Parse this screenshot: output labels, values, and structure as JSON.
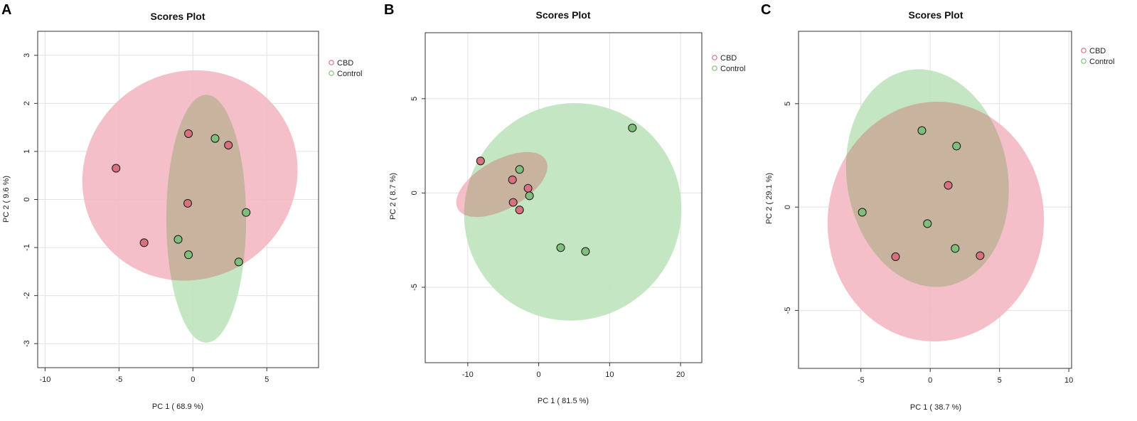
{
  "colors": {
    "CBD_fill": "#f4b8c4",
    "CBD_point": "#d9707f",
    "Control_fill": "#bfe3bc",
    "Control_point": "#7fbf7b",
    "overlap_tint": "#c8b39f",
    "grid": "#e2e2e2",
    "point_stroke": "#222222"
  },
  "chart_data": [
    {
      "type": "scatter",
      "panel": "A",
      "title": "Scores Plot",
      "xlabel": "PC 1 ( 68.9 %)",
      "ylabel": "PC 2 ( 9.6 %)",
      "xlim": [
        -10.5,
        8.5
      ],
      "ylim": [
        -3.5,
        3.5
      ],
      "xticks": [
        -10,
        -5,
        0,
        5
      ],
      "yticks": [
        -3,
        -2,
        -1,
        0,
        1,
        2,
        3
      ],
      "legend": {
        "position": "top-right",
        "entries": [
          "CBD",
          "Control"
        ]
      },
      "series": [
        {
          "name": "CBD",
          "points": [
            [
              -5.2,
              0.65
            ],
            [
              -3.3,
              -0.9
            ],
            [
              -0.3,
              1.37
            ],
            [
              2.4,
              1.13
            ],
            [
              -0.35,
              -0.08
            ]
          ],
          "ellipse": {
            "cx": -0.2,
            "cy": 0.5,
            "rx": 7.4,
            "ry": 2.15,
            "angle": 33
          }
        },
        {
          "name": "Control",
          "points": [
            [
              1.5,
              1.27
            ],
            [
              3.6,
              -0.27
            ],
            [
              -1.0,
              -0.83
            ],
            [
              -0.3,
              -1.15
            ],
            [
              3.1,
              -1.3
            ]
          ],
          "ellipse": {
            "cx": 0.9,
            "cy": -0.4,
            "rx": 2.7,
            "ry": 2.58,
            "angle": 0
          }
        }
      ]
    },
    {
      "type": "scatter",
      "panel": "B",
      "title": "Scores Plot",
      "xlabel": "PC 1 ( 81.5 %)",
      "ylabel": "PC 2 ( 8.7 %)",
      "xlim": [
        -16,
        23
      ],
      "ylim": [
        -9,
        8.5
      ],
      "xticks": [
        -10,
        0,
        10,
        20
      ],
      "yticks": [
        -5,
        0,
        5
      ],
      "legend": {
        "position": "top-right",
        "entries": [
          "CBD",
          "Control"
        ]
      },
      "series": [
        {
          "name": "CBD",
          "points": [
            [
              -8.2,
              1.7
            ],
            [
              -3.7,
              0.7
            ],
            [
              -1.5,
              0.25
            ],
            [
              -3.6,
              -0.5
            ],
            [
              -2.7,
              -0.9
            ]
          ],
          "ellipse": {
            "cx": -5.2,
            "cy": 0.45,
            "rx": 7.1,
            "ry": 1.3,
            "angle": 29
          }
        },
        {
          "name": "Control",
          "points": [
            [
              13.2,
              3.45
            ],
            [
              -2.7,
              1.25
            ],
            [
              -1.3,
              -0.15
            ],
            [
              3.1,
              -2.9
            ],
            [
              6.6,
              -3.1
            ]
          ],
          "ellipse": {
            "cx": 4.8,
            "cy": -1.0,
            "rx": 15.5,
            "ry": 5.7,
            "angle": 46
          }
        }
      ]
    },
    {
      "type": "scatter",
      "panel": "C",
      "title": "Scores Plot",
      "xlabel": "PC 1 ( 38.7 %)",
      "ylabel": "PC 2 ( 29.1 %)",
      "xlim": [
        -9.5,
        10.2
      ],
      "ylim": [
        -7.8,
        8.5
      ],
      "xticks": [
        -5,
        0,
        5,
        10
      ],
      "yticks": [
        -5,
        0,
        5
      ],
      "legend": {
        "position": "top-right",
        "entries": [
          "CBD",
          "Control"
        ]
      },
      "series": [
        {
          "name": "CBD",
          "points": [
            [
              1.3,
              1.05
            ],
            [
              -2.5,
              -2.4
            ],
            [
              3.6,
              -2.35
            ]
          ],
          "ellipse": {
            "cx": 0.4,
            "cy": -0.7,
            "rx": 7.8,
            "ry": 5.8,
            "angle": -4
          }
        },
        {
          "name": "Control",
          "points": [
            [
              -0.6,
              3.7
            ],
            [
              1.9,
              2.95
            ],
            [
              -4.9,
              -0.25
            ],
            [
              -0.2,
              -0.8
            ],
            [
              1.8,
              -2.0
            ]
          ],
          "ellipse": {
            "cx": -0.2,
            "cy": 1.4,
            "rx": 5.8,
            "ry": 5.3,
            "angle": 10
          }
        }
      ]
    }
  ]
}
